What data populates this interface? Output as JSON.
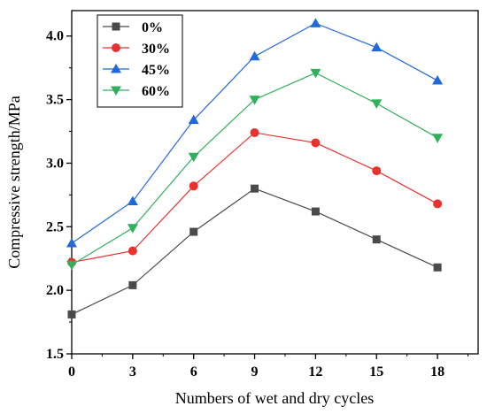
{
  "chart_data": {
    "type": "line",
    "title": "",
    "xlabel": "Numbers of wet and dry cycles",
    "ylabel": "Compressive strength/MPa",
    "x": [
      0,
      3,
      6,
      9,
      12,
      15,
      18
    ],
    "x_ticks": [
      "0",
      "3",
      "6",
      "9",
      "12",
      "15",
      "18"
    ],
    "y_ticks": [
      "1.5",
      "2.0",
      "2.5",
      "3.0",
      "3.5",
      "4.0"
    ],
    "xlim": [
      0,
      20
    ],
    "ylim": [
      1.5,
      4.2
    ],
    "grid": false,
    "legend_position": "top-left",
    "series": [
      {
        "name": "0%",
        "color": "#4a4a4a",
        "marker": "square",
        "values": [
          1.81,
          2.04,
          2.46,
          2.8,
          2.62,
          2.4,
          2.18
        ]
      },
      {
        "name": "30%",
        "color": "#e8322d",
        "marker": "circle",
        "values": [
          2.22,
          2.31,
          2.82,
          3.24,
          3.16,
          2.94,
          2.68
        ]
      },
      {
        "name": "45%",
        "color": "#2168d8",
        "marker": "triangle-up",
        "values": [
          2.37,
          2.7,
          3.34,
          3.84,
          4.1,
          3.91,
          3.65
        ]
      },
      {
        "name": "60%",
        "color": "#2fb05a",
        "marker": "triangle-down",
        "values": [
          2.2,
          2.49,
          3.05,
          3.5,
          3.71,
          3.47,
          3.2
        ]
      }
    ]
  }
}
